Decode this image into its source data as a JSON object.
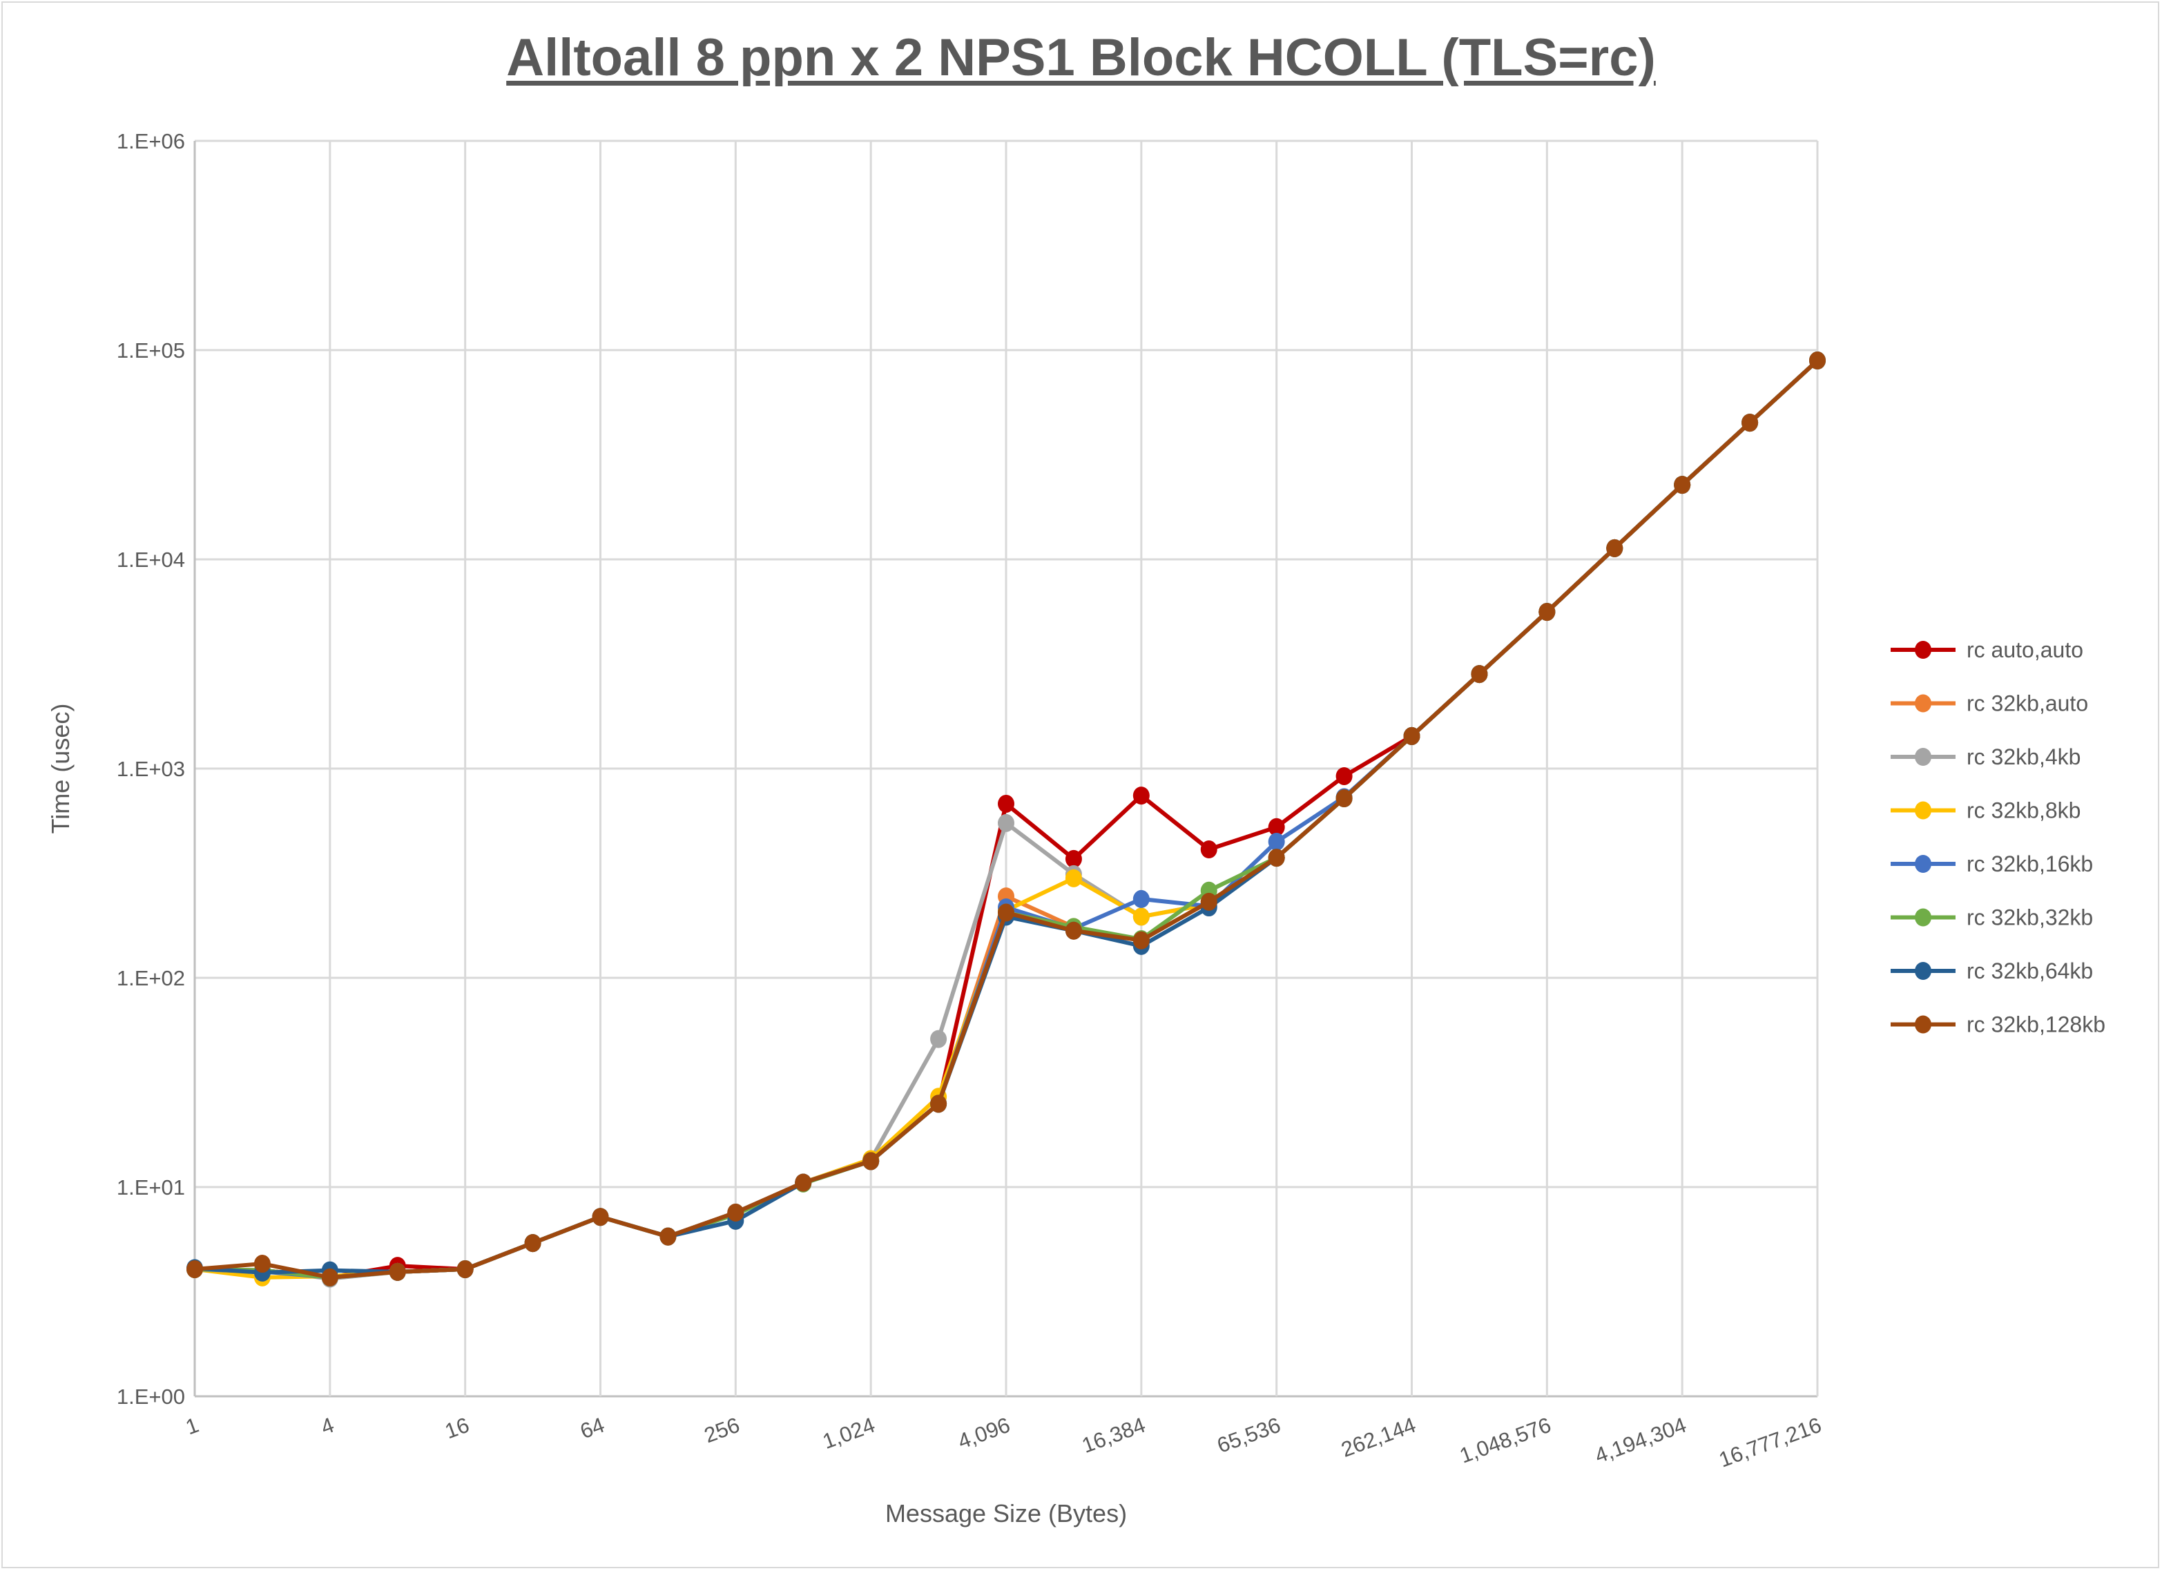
{
  "chart_data": {
    "type": "line",
    "title": "Alltoall 8 ppn x 2 NPS1 Block HCOLL (TLS=rc)",
    "xlabel": "Message Size (Bytes)",
    "ylabel": "Time (usec)",
    "x_scale": "log2",
    "y_scale": "log10",
    "ylim": [
      1,
      1000000
    ],
    "grid": true,
    "legend_position": "right",
    "x": [
      1,
      2,
      4,
      8,
      16,
      32,
      64,
      128,
      256,
      512,
      1024,
      2048,
      4096,
      8192,
      16384,
      32768,
      65536,
      131072,
      262144,
      524288,
      1048576,
      2097152,
      4194304,
      8388608,
      16777216
    ],
    "x_tick_labels": [
      "1",
      "4",
      "16",
      "64",
      "256",
      "1,024",
      "4,096",
      "16,384",
      "65,536",
      "262,144",
      "1,048,576",
      "4,194,304",
      "16,777,216"
    ],
    "y_tick_labels": [
      "1.E+00",
      "1.E+01",
      "1.E+02",
      "1.E+03",
      "1.E+04",
      "1.E+05",
      "1.E+06"
    ],
    "series": [
      {
        "name": "rc auto,auto",
        "color": "#C00000",
        "values": [
          4.05,
          4.0,
          3.7,
          4.2,
          4.05,
          5.4,
          7.2,
          5.8,
          7.55,
          10.5,
          13.3,
          25,
          679,
          370,
          743,
          411,
          525,
          920,
          1430,
          2830,
          5610,
          11300,
          22700,
          45000,
          89200
        ]
      },
      {
        "name": "rc 32kb,auto",
        "color": "#ED7D31",
        "values": [
          4.05,
          4.0,
          3.7,
          3.93,
          4.05,
          5.4,
          7.2,
          5.8,
          7.55,
          10.5,
          13.3,
          25,
          245,
          175,
          152,
          230,
          375,
          721,
          1430,
          2830,
          5610,
          11300,
          22700,
          45000,
          89200
        ]
      },
      {
        "name": "rc 32kb,4kb",
        "color": "#A5A5A5",
        "values": [
          4.05,
          4.0,
          3.65,
          3.93,
          4.05,
          5.4,
          7.2,
          5.8,
          7.55,
          10.5,
          13.5,
          51,
          549,
          313,
          196,
          225,
          375,
          721,
          1430,
          2830,
          5610,
          11300,
          22700,
          45000,
          89200
        ]
      },
      {
        "name": "rc 32kb,8kb",
        "color": "#FFC000",
        "values": [
          4.05,
          3.7,
          3.75,
          3.93,
          4.05,
          5.4,
          7.2,
          5.8,
          7.55,
          10.5,
          13.6,
          27,
          210,
          299,
          196,
          225,
          375,
          721,
          1430,
          2830,
          5610,
          11300,
          22700,
          45000,
          89200
        ]
      },
      {
        "name": "rc 32kb,16kb",
        "color": "#4472C4",
        "values": [
          4.05,
          3.95,
          3.7,
          3.93,
          4.05,
          5.4,
          7.2,
          5.8,
          7.55,
          10.5,
          13.3,
          25,
          217,
          172,
          238,
          220,
          447,
          730,
          1430,
          2830,
          5610,
          11300,
          22700,
          45000,
          89200
        ]
      },
      {
        "name": "rc 32kb,32kb",
        "color": "#70AD47",
        "values": [
          4.05,
          4.0,
          3.7,
          3.93,
          4.05,
          5.4,
          7.2,
          5.8,
          7.4,
          10.4,
          13.3,
          25,
          205,
          175,
          153,
          261,
          375,
          721,
          1430,
          2830,
          5610,
          11300,
          22700,
          45000,
          89200
        ]
      },
      {
        "name": "rc 32kb,64kb",
        "color": "#255E91",
        "values": [
          4.1,
          3.9,
          4.0,
          3.93,
          4.05,
          5.4,
          7.2,
          5.8,
          6.9,
          10.5,
          13.3,
          25,
          196,
          168,
          142,
          217,
          375,
          721,
          1430,
          2830,
          5610,
          11300,
          22700,
          45000,
          89200
        ]
      },
      {
        "name": "rc 32kb,128kb",
        "color": "#9E480E",
        "values": [
          4.05,
          4.3,
          3.7,
          3.93,
          4.05,
          5.4,
          7.2,
          5.8,
          7.55,
          10.5,
          13.3,
          25,
          205,
          168,
          151,
          231,
          375,
          721,
          1430,
          2830,
          5610,
          11300,
          22700,
          45000,
          89200
        ]
      }
    ]
  }
}
